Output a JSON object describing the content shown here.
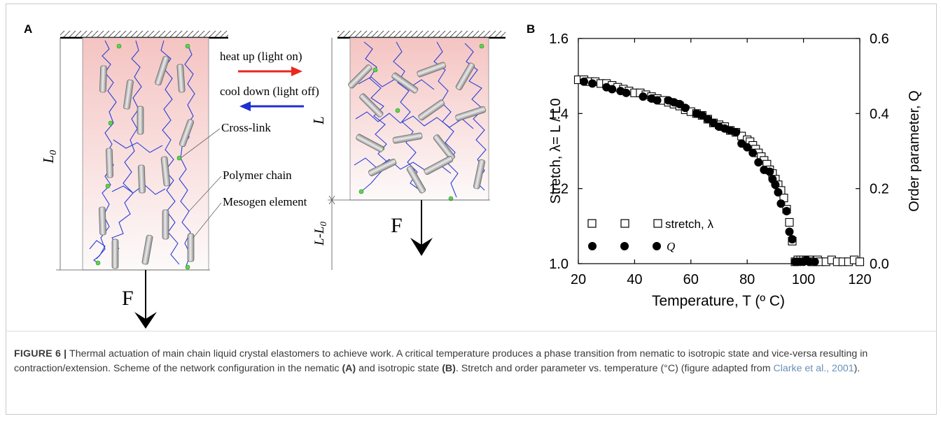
{
  "panel_a": {
    "label": "A",
    "labels": {
      "heat_up": "heat up (light on)",
      "cool_down": "cool down (light off)",
      "cross_link": "Cross-link",
      "polymer_chain": "Polymer chain",
      "mesogen_element": "Mesogen element",
      "L0": "L",
      "L0_sub": "0",
      "L": "L",
      "L_minus_L0": "L-L",
      "L_minus_L0_sub": "0",
      "force_left": "F",
      "force_right": "F"
    },
    "colors": {
      "heat_arrow": "#e8291c",
      "cool_arrow": "#1f2fd1",
      "chain": "#2a3fd6",
      "crosslink": "#5ad64a",
      "box_fill_top": "#f6c9c6"
    }
  },
  "panel_b": {
    "label": "B",
    "chart_data": {
      "type": "scatter",
      "xlabel": "Temperature, T (º C)",
      "ylabel_left": "Stretch, λ= L / L0",
      "ylabel_right": "Order parameter, Q",
      "xlim": [
        20,
        120
      ],
      "ylim_left": [
        1.0,
        1.6
      ],
      "ylim_right": [
        0.0,
        0.6
      ],
      "x_ticks": [
        "20",
        "40",
        "60",
        "80",
        "100",
        "120"
      ],
      "y_ticks_left": [
        "1.0",
        "1.2",
        "1.4",
        "1.6"
      ],
      "y_ticks_right": [
        "0.0",
        "0.2",
        "0.4",
        "0.6"
      ],
      "legend": [
        {
          "name": "stretch, λ",
          "marker": "open-square"
        },
        {
          "name": "Q",
          "marker": "filled-circle"
        }
      ],
      "series": [
        {
          "name": "stretch, λ",
          "axis": "left",
          "points": [
            [
              20,
              1.49
            ],
            [
              22,
              1.49
            ],
            [
              24,
              1.485
            ],
            [
              26,
              1.485
            ],
            [
              28,
              1.48
            ],
            [
              30,
              1.48
            ],
            [
              32,
              1.475
            ],
            [
              34,
              1.47
            ],
            [
              36,
              1.465
            ],
            [
              38,
              1.46
            ],
            [
              40,
              1.455
            ],
            [
              42,
              1.455
            ],
            [
              44,
              1.45
            ],
            [
              46,
              1.445
            ],
            [
              48,
              1.44
            ],
            [
              50,
              1.435
            ],
            [
              52,
              1.43
            ],
            [
              54,
              1.425
            ],
            [
              56,
              1.42
            ],
            [
              58,
              1.41
            ],
            [
              60,
              1.405
            ],
            [
              62,
              1.4
            ],
            [
              64,
              1.395
            ],
            [
              66,
              1.385
            ],
            [
              68,
              1.375
            ],
            [
              70,
              1.37
            ],
            [
              72,
              1.365
            ],
            [
              74,
              1.355
            ],
            [
              76,
              1.35
            ],
            [
              78,
              1.34
            ],
            [
              80,
              1.33
            ],
            [
              81,
              1.325
            ],
            [
              82,
              1.315
            ],
            [
              83,
              1.305
            ],
            [
              84,
              1.295
            ],
            [
              85,
              1.285
            ],
            [
              86,
              1.275
            ],
            [
              87,
              1.265
            ],
            [
              88,
              1.25
            ],
            [
              89,
              1.24
            ],
            [
              90,
              1.225
            ],
            [
              91,
              1.21
            ],
            [
              92,
              1.195
            ],
            [
              93,
              1.175
            ],
            [
              94,
              1.145
            ],
            [
              95,
              1.11
            ],
            [
              96,
              1.06
            ],
            [
              97,
              1.005
            ],
            [
              98,
              1.01
            ],
            [
              99,
              1.01
            ],
            [
              100,
              1.01
            ],
            [
              101,
              1.01
            ],
            [
              102,
              1.01
            ],
            [
              103,
              1.005
            ],
            [
              104,
              1.005
            ],
            [
              105,
              1.01
            ],
            [
              106,
              1.005
            ],
            [
              108,
              1.005
            ],
            [
              110,
              1.01
            ],
            [
              112,
              1.005
            ],
            [
              114,
              1.005
            ],
            [
              116,
              1.005
            ],
            [
              118,
              1.01
            ],
            [
              120,
              1.005
            ]
          ]
        },
        {
          "name": "Q",
          "axis": "right",
          "points": [
            [
              22,
              0.485
            ],
            [
              25,
              0.48
            ],
            [
              30,
              0.47
            ],
            [
              32,
              0.465
            ],
            [
              35,
              0.46
            ],
            [
              37,
              0.455
            ],
            [
              43,
              0.445
            ],
            [
              46,
              0.44
            ],
            [
              48,
              0.435
            ],
            [
              52,
              0.435
            ],
            [
              54,
              0.43
            ],
            [
              56,
              0.425
            ],
            [
              58,
              0.415
            ],
            [
              62,
              0.4
            ],
            [
              64,
              0.395
            ],
            [
              66,
              0.385
            ],
            [
              68,
              0.375
            ],
            [
              70,
              0.365
            ],
            [
              72,
              0.36
            ],
            [
              74,
              0.355
            ],
            [
              76,
              0.35
            ],
            [
              78,
              0.32
            ],
            [
              80,
              0.31
            ],
            [
              82,
              0.295
            ],
            [
              84,
              0.27
            ],
            [
              86,
              0.25
            ],
            [
              88,
              0.245
            ],
            [
              89,
              0.225
            ],
            [
              90,
              0.21
            ],
            [
              91,
              0.19
            ],
            [
              92,
              0.16
            ],
            [
              94,
              0.14
            ],
            [
              95,
              0.085
            ],
            [
              96,
              0.065
            ],
            [
              97,
              0.005
            ],
            [
              98,
              0.005
            ],
            [
              99,
              0.005
            ],
            [
              100,
              0.005
            ],
            [
              101,
              0.01
            ],
            [
              102,
              0.005
            ],
            [
              104,
              0.005
            ]
          ]
        }
      ]
    }
  },
  "caption": {
    "figure_label": "FIGURE 6 |",
    "text_1": " Thermal actuation of main chain liquid crystal elastomers to achieve work. A critical temperature produces a phase transition from nematic to isotropic state and vice-versa resulting in contraction/extension. Scheme of the network configuration in the nematic ",
    "bold_a": "(A)",
    "text_2": " and isotropic state ",
    "bold_b": "(B)",
    "text_3": ". Stretch and order parameter vs. temperature (°C) (figure adapted from ",
    "citation": "Clarke et al., 2001",
    "text_4": ")."
  }
}
